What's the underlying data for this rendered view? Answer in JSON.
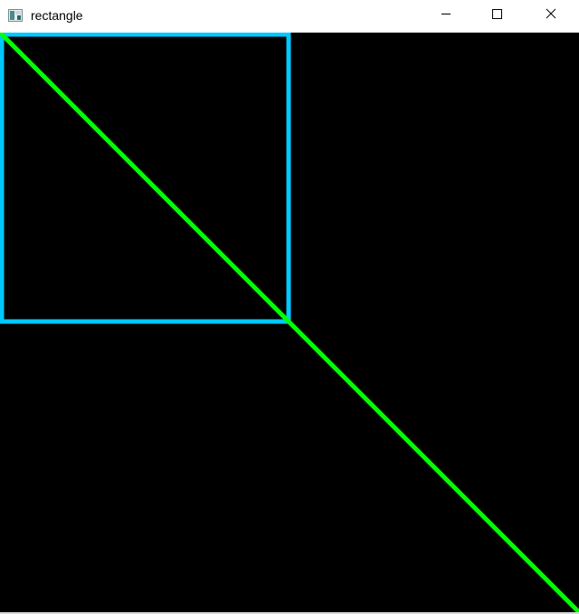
{
  "window": {
    "title": "rectangle",
    "controls": {
      "minimize": "minimize",
      "maximize": "maximize",
      "close": "close"
    },
    "icon": "app-window-icon"
  },
  "canvas": {
    "background": "#000000",
    "shapes": [
      {
        "type": "rectangle",
        "color": "#00c8ff",
        "name": "cyan-rectangle"
      },
      {
        "type": "line",
        "color": "#00ff00",
        "name": "green-diagonal-line"
      }
    ]
  }
}
